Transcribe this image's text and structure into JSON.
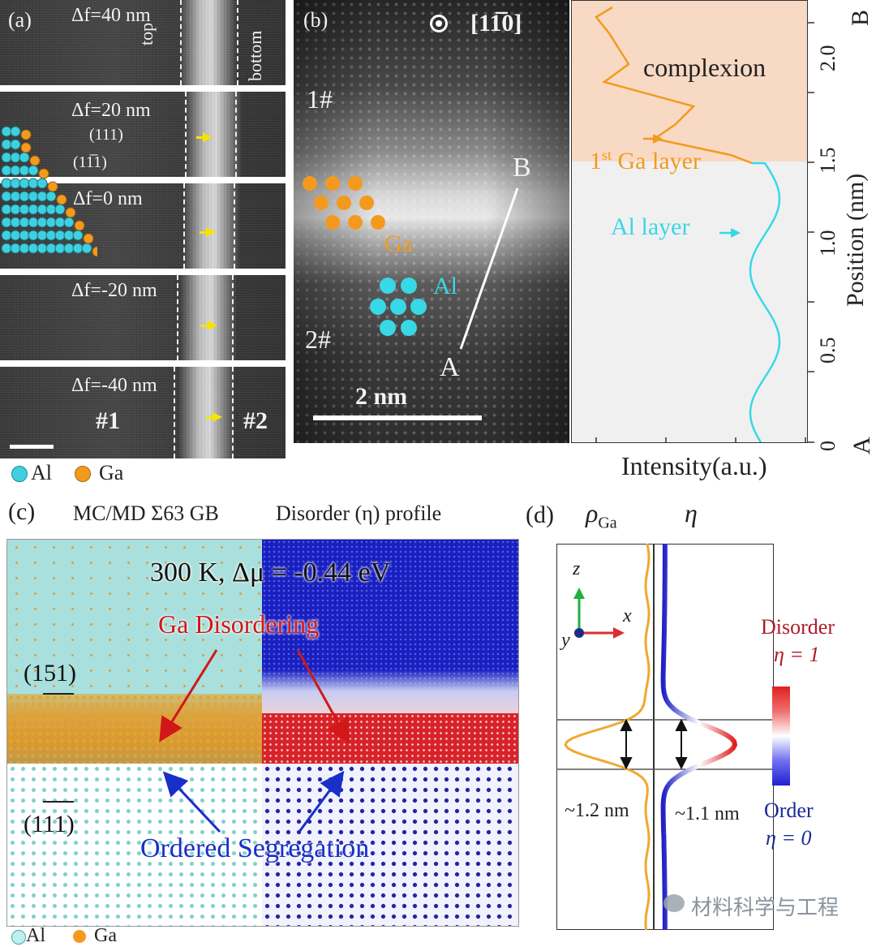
{
  "panel_a": {
    "label": "(a)",
    "frames": [
      {
        "df": "Δf=40 nm"
      },
      {
        "df": "Δf=20 nm"
      },
      {
        "df": "Δf=0 nm"
      },
      {
        "df": "Δf=-20 nm"
      },
      {
        "df": "Δf=-40 nm"
      }
    ],
    "top_label": "top",
    "bottom_label": "bottom",
    "plane1": "(111)",
    "plane2": "(11̅1)",
    "grain1": "#1",
    "grain2": "#2",
    "legend_al": "Al",
    "legend_ga": "Ga",
    "colors": {
      "al": "#3fd0e0",
      "ga": "#f39a1e"
    }
  },
  "panel_b": {
    "label": "(b)",
    "zone": "[11̅0]",
    "grain1": "1#",
    "grain2": "2#",
    "ga": "Ga",
    "al": "Al",
    "pt_a": "A",
    "pt_b": "B",
    "scalebar": "2 nm"
  },
  "profile": {
    "complexion": "complexion",
    "ga_layer_sup": "st",
    "ga_layer_pre": "1",
    "ga_layer": "Ga layer",
    "al_layer": "Al layer",
    "xlabel": "Intensity(a.u.)",
    "ylabel": "Position (nm)",
    "yticks": [
      "0",
      "0.5",
      "1.0",
      "1.5",
      "2.0"
    ],
    "end_a": "A",
    "end_b": "B",
    "colors": {
      "ga_curve": "#f39a1e",
      "al_curve": "#38d8e6",
      "complexion_bg": "#f8d9c4",
      "al_bg": "#f0f0f0"
    }
  },
  "panel_c": {
    "label": "(c)",
    "title_left": "MC/MD Σ63 GB",
    "title_right": "Disorder (η) profile",
    "condition": "300 K, Δμ = -0.44 eV",
    "ga_disordering": "Ga Disordering",
    "ordered_seg": "Ordered Segregation",
    "plane_top": "(151)",
    "plane_bottom": "(111)",
    "legend_al": "Al",
    "legend_ga": "Ga"
  },
  "panel_d": {
    "label": "(d)",
    "rho": "ρ",
    "rho_sub": "Ga",
    "eta": "η",
    "axis_z": "z",
    "axis_x": "x",
    "axis_y": "y",
    "width_left": "~1.2 nm",
    "width_right": "~1.1 nm",
    "disorder": "Disorder",
    "disorder_eta": "η = 1",
    "order": "Order",
    "order_eta": "η = 0"
  },
  "watermark": "材料科学与工程"
}
